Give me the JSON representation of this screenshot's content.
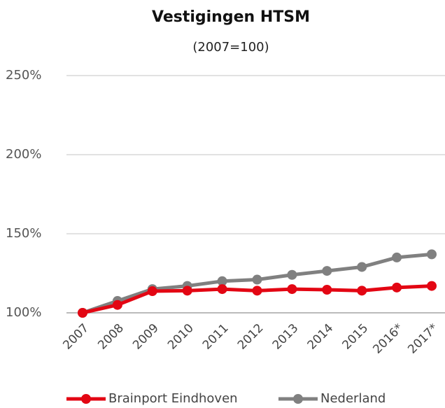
{
  "chart_data": {
    "type": "line",
    "title": "Vestigingen HTSM",
    "subtitle": "(2007=100)",
    "categories": [
      "2007",
      "2008",
      "2009",
      "2010",
      "2011",
      "2012",
      "2013",
      "2014",
      "2015",
      "2016*",
      "2017*"
    ],
    "series": [
      {
        "name": "Brainport Eindhoven",
        "color": "#e30613",
        "values": [
          100,
          105,
          113.7,
          114,
          115,
          114,
          115,
          114.6,
          114,
          116,
          117
        ]
      },
      {
        "name": "Nederland",
        "color": "#808080",
        "values": [
          100,
          107.5,
          115,
          117,
          120,
          121,
          124,
          126.5,
          129,
          135,
          137
        ]
      }
    ],
    "ylim": [
      100,
      250
    ],
    "yticks": [
      {
        "value": 100,
        "label": "100%"
      },
      {
        "value": 150,
        "label": "150%"
      },
      {
        "value": 200,
        "label": "200%"
      },
      {
        "value": 250,
        "label": "250%"
      }
    ],
    "grid": true,
    "legend": "bottom"
  }
}
